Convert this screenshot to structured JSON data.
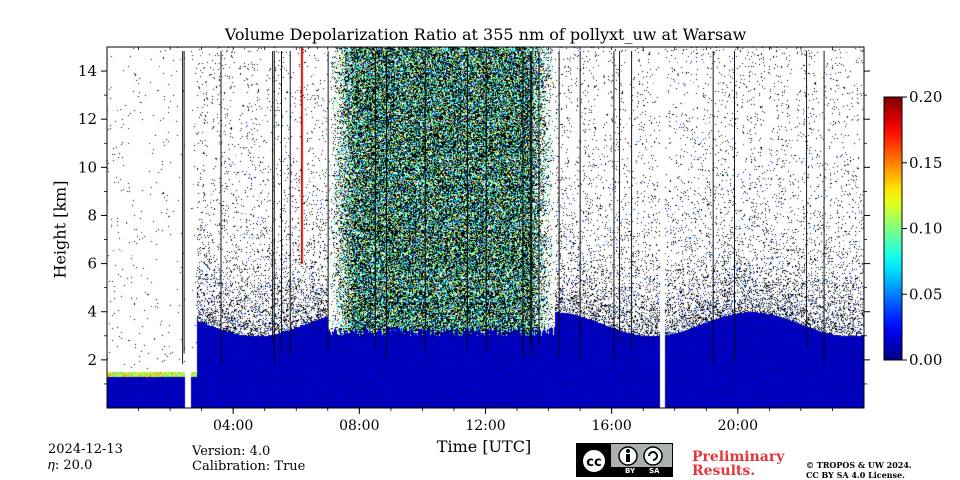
{
  "chart_data": {
    "type": "heatmap",
    "title": "Volume Depolarization Ratio at 355 nm of pollyxt_uw at Warsaw",
    "xlabel": "Time [UTC]",
    "ylabel": "Height [km]",
    "x_ticks": [
      "04:00",
      "08:00",
      "12:00",
      "16:00",
      "20:00"
    ],
    "x_tick_hours": [
      4,
      8,
      12,
      16,
      20
    ],
    "xlim_hours": [
      0,
      24
    ],
    "y_ticks": [
      2,
      4,
      6,
      8,
      10,
      12,
      14
    ],
    "y_tick_labels": [
      "2",
      "4",
      "6",
      "8",
      "10",
      "12",
      "14"
    ],
    "ylim": [
      0,
      15
    ],
    "colorbar": {
      "range": [
        0.0,
        0.2
      ],
      "ticks": [
        0.0,
        0.05,
        0.1,
        0.15,
        0.2
      ],
      "tick_labels": [
        "0.00",
        "0.05",
        "0.10",
        "0.15",
        "0.20"
      ],
      "colormap": "jet"
    },
    "gaps_hours": [
      2.55,
      17.6
    ],
    "aerosol_layer_top_km": 3.5,
    "cloud_period_hours": [
      7.0,
      14.2
    ],
    "background_color": "#ffffff"
  },
  "footer": {
    "date": "2024-12-13",
    "eta": "𝜂: 20.0",
    "version": "Version: 4.0",
    "calibration": "Calibration: True",
    "preliminary_line1": "Preliminary",
    "preliminary_line2": "Results.",
    "copyright_line1": "© TROPOS & UW 2024.",
    "copyright_line2": "CC BY SA 4.0 License.",
    "cc_badge": {
      "by": "BY",
      "sa": "SA",
      "cc": "cc"
    }
  }
}
